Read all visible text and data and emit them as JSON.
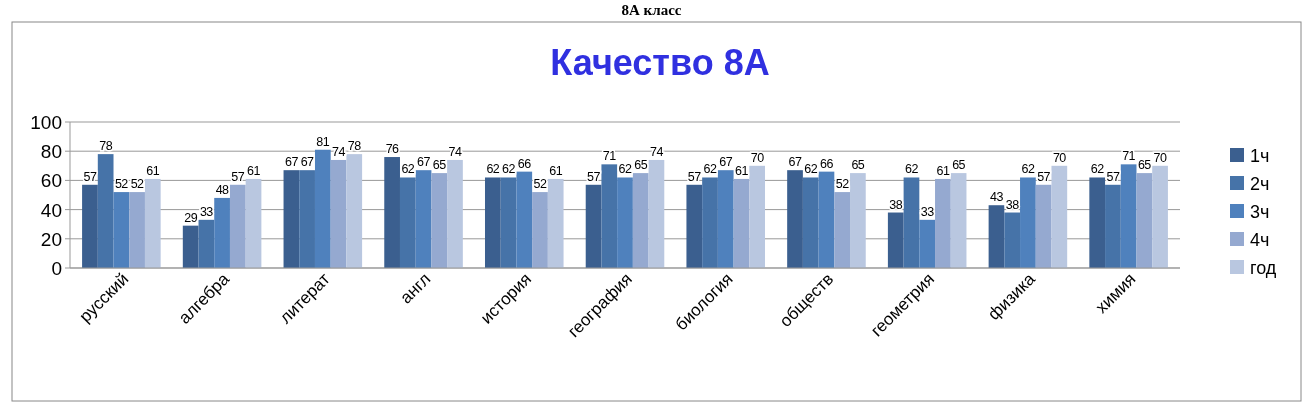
{
  "chart_data": {
    "type": "bar",
    "title": "Качество 8А",
    "annotations": [
      "8А класс"
    ],
    "categories": [
      "русский",
      "алгебра",
      "литерат",
      "англ",
      "история",
      "география",
      "биология",
      "обществ",
      "геометрия",
      "физика",
      "химия"
    ],
    "series": [
      {
        "name": "1ч",
        "color": "#3b5f8f",
        "values": [
          57,
          29,
          67,
          76,
          62,
          57,
          57,
          67,
          38,
          43,
          62
        ]
      },
      {
        "name": "2ч",
        "color": "#4673a8",
        "values": [
          78,
          33,
          67,
          62,
          62,
          71,
          62,
          62,
          62,
          38,
          57
        ]
      },
      {
        "name": "3ч",
        "color": "#4f81bd",
        "values": [
          52,
          48,
          81,
          67,
          66,
          62,
          67,
          66,
          33,
          62,
          71
        ]
      },
      {
        "name": "4ч",
        "color": "#95a9d0",
        "values": [
          52,
          57,
          74,
          65,
          52,
          65,
          61,
          52,
          61,
          57,
          65
        ]
      },
      {
        "name": "год",
        "color": "#b9c7e0",
        "values": [
          61,
          61,
          78,
          74,
          61,
          74,
          70,
          65,
          65,
          70,
          70
        ]
      }
    ],
    "ylim": [
      0,
      100
    ],
    "yticks": [
      0,
      20,
      40,
      60,
      80,
      100
    ],
    "grid": "y",
    "legend": "right",
    "data_labels": true
  }
}
